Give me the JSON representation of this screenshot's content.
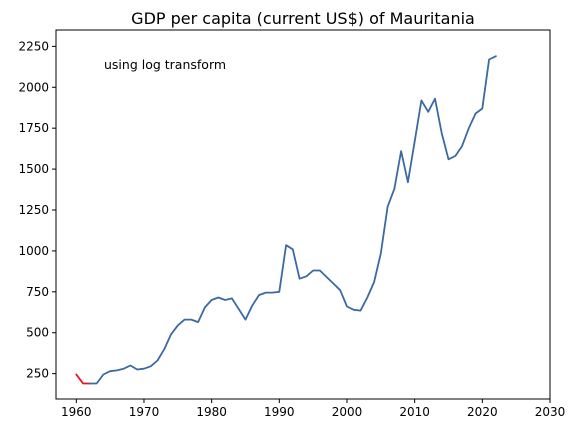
{
  "chart_data": {
    "type": "line",
    "title": "GDP per capita (current US$) of Mauritania",
    "annotation": "using log transform",
    "xlabel": "",
    "ylabel": "",
    "xlim": [
      1957,
      2030
    ],
    "ylim": [
      95,
      2350
    ],
    "xticks": [
      1960,
      1970,
      1980,
      1990,
      2000,
      2010,
      2020,
      2030
    ],
    "yticks": [
      250,
      500,
      750,
      1000,
      1250,
      1500,
      1750,
      2000,
      2250
    ],
    "grid": false,
    "legend": "none",
    "series": [
      {
        "color": "#e8141a",
        "x": [
          1960,
          1961,
          1962
        ],
        "y": [
          245,
          190,
          190
        ]
      },
      {
        "color": "#3a6aa0",
        "x": [
          1962,
          1963,
          1964,
          1965,
          1966,
          1967,
          1968,
          1969,
          1970,
          1971,
          1972,
          1973,
          1974,
          1975,
          1976,
          1977,
          1978,
          1979,
          1980,
          1981,
          1982,
          1983,
          1984,
          1985,
          1986,
          1987,
          1988,
          1989,
          1990,
          1991,
          1992,
          1993,
          1994,
          1995,
          1996,
          1997,
          1998,
          1999,
          2000,
          2001,
          2002,
          2003,
          2004,
          2005,
          2006,
          2007,
          2008,
          2009,
          2010,
          2011,
          2012,
          2013,
          2014,
          2015,
          2016,
          2017,
          2018,
          2019,
          2020,
          2021,
          2022
        ],
        "y": [
          190,
          190,
          245,
          265,
          270,
          280,
          300,
          275,
          280,
          295,
          330,
          400,
          490,
          545,
          580,
          580,
          565,
          655,
          700,
          715,
          700,
          710,
          645,
          580,
          665,
          730,
          745,
          745,
          750,
          1035,
          1010,
          830,
          845,
          880,
          880,
          840,
          800,
          760,
          660,
          640,
          635,
          715,
          810,
          985,
          1270,
          1380,
          1610,
          1420,
          1670,
          1920,
          1850,
          1930,
          1720,
          1560,
          1580,
          1640,
          1750,
          1840,
          1870,
          2170,
          2190
        ]
      }
    ]
  }
}
